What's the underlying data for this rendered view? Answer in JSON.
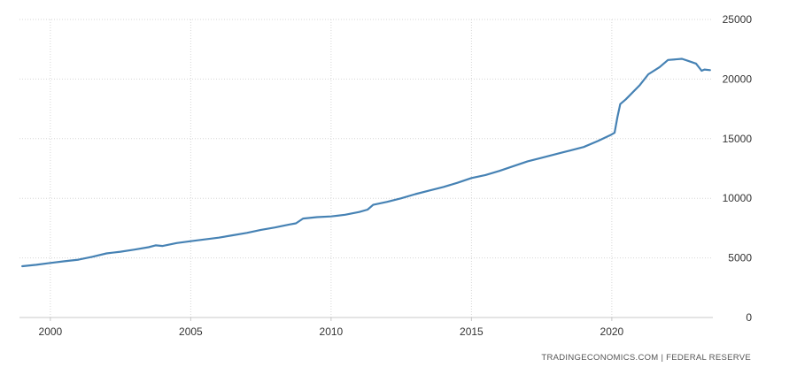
{
  "chart_data": {
    "type": "line",
    "title": "",
    "xlabel": "",
    "ylabel": "",
    "x_ticks": [
      "2000",
      "2005",
      "2010",
      "2015",
      "2020"
    ],
    "y_ticks": [
      "0",
      "5000",
      "10000",
      "15000",
      "20000",
      "25000"
    ],
    "xlim": [
      1998.9,
      2023.6
    ],
    "ylim": [
      0,
      25000
    ],
    "grid": true,
    "legend": "none",
    "colors": {
      "line": "#4682b4",
      "grid": "#d6d6d6"
    },
    "series": [
      {
        "name": "",
        "points": [
          [
            1999.0,
            4300
          ],
          [
            1999.5,
            4420
          ],
          [
            2000.0,
            4580
          ],
          [
            2000.5,
            4720
          ],
          [
            2001.0,
            4850
          ],
          [
            2001.5,
            5100
          ],
          [
            2002.0,
            5380
          ],
          [
            2002.5,
            5520
          ],
          [
            2003.0,
            5700
          ],
          [
            2003.5,
            5900
          ],
          [
            2003.75,
            6050
          ],
          [
            2004.0,
            6000
          ],
          [
            2004.5,
            6250
          ],
          [
            2005.0,
            6400
          ],
          [
            2005.5,
            6550
          ],
          [
            2006.0,
            6700
          ],
          [
            2006.5,
            6900
          ],
          [
            2007.0,
            7100
          ],
          [
            2007.5,
            7350
          ],
          [
            2008.0,
            7550
          ],
          [
            2008.5,
            7800
          ],
          [
            2008.75,
            7900
          ],
          [
            2009.0,
            8300
          ],
          [
            2009.5,
            8420
          ],
          [
            2010.0,
            8480
          ],
          [
            2010.5,
            8620
          ],
          [
            2011.0,
            8850
          ],
          [
            2011.3,
            9050
          ],
          [
            2011.5,
            9450
          ],
          [
            2012.0,
            9700
          ],
          [
            2012.5,
            10000
          ],
          [
            2013.0,
            10350
          ],
          [
            2013.5,
            10650
          ],
          [
            2014.0,
            10950
          ],
          [
            2014.5,
            11300
          ],
          [
            2015.0,
            11700
          ],
          [
            2015.5,
            11950
          ],
          [
            2016.0,
            12300
          ],
          [
            2016.5,
            12700
          ],
          [
            2017.0,
            13100
          ],
          [
            2017.5,
            13400
          ],
          [
            2018.0,
            13700
          ],
          [
            2018.5,
            14000
          ],
          [
            2019.0,
            14300
          ],
          [
            2019.5,
            14800
          ],
          [
            2019.95,
            15300
          ],
          [
            2020.1,
            15500
          ],
          [
            2020.2,
            16800
          ],
          [
            2020.3,
            17900
          ],
          [
            2020.5,
            18300
          ],
          [
            2021.0,
            19500
          ],
          [
            2021.3,
            20400
          ],
          [
            2021.7,
            21000
          ],
          [
            2022.0,
            21600
          ],
          [
            2022.5,
            21700
          ],
          [
            2022.75,
            21500
          ],
          [
            2023.0,
            21300
          ],
          [
            2023.2,
            20700
          ],
          [
            2023.3,
            20800
          ],
          [
            2023.5,
            20750
          ]
        ]
      }
    ],
    "source": "TRADINGECONOMICS.COM  |  FEDERAL RESERVE"
  }
}
